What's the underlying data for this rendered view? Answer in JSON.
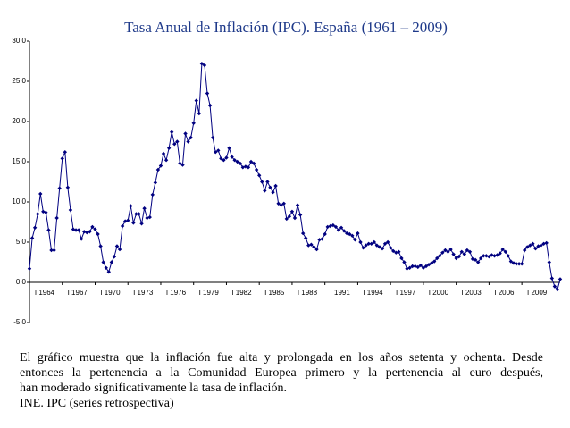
{
  "chart_data": {
    "type": "line",
    "title": "Tasa Anual de Inflación (IPC). España (1961 – 2009)",
    "categories": [
      "I 1964",
      null,
      null,
      null,
      null,
      null,
      null,
      null,
      null,
      null,
      null,
      null,
      "I 1967",
      null,
      null,
      null,
      null,
      null,
      null,
      null,
      null,
      null,
      null,
      null,
      "I 1970",
      null,
      null,
      null,
      null,
      null,
      null,
      null,
      null,
      null,
      null,
      null,
      "I 1973",
      null,
      null,
      null,
      null,
      null,
      null,
      null,
      null,
      null,
      null,
      null,
      "I 1976",
      null,
      null,
      null,
      null,
      null,
      null,
      null,
      null,
      null,
      null,
      null,
      "I 1979",
      null,
      null,
      null,
      null,
      null,
      null,
      null,
      null,
      null,
      null,
      null,
      "I 1982",
      null,
      null,
      null,
      null,
      null,
      null,
      null,
      null,
      null,
      null,
      null,
      "I 1985",
      null,
      null,
      null,
      null,
      null,
      null,
      null,
      null,
      null,
      null,
      null,
      "I 1988",
      null,
      null,
      null,
      null,
      null,
      null,
      null,
      null,
      null,
      null,
      null,
      "I 1991",
      null,
      null,
      null,
      null,
      null,
      null,
      null,
      null,
      null,
      null,
      null,
      "I 1994",
      null,
      null,
      null,
      null,
      null,
      null,
      null,
      null,
      null,
      null,
      null,
      "I 1997",
      null,
      null,
      null,
      null,
      null,
      null,
      null,
      null,
      null,
      null,
      null,
      "I 2000",
      null,
      null,
      null,
      null,
      null,
      null,
      null,
      null,
      null,
      null,
      null,
      "I 2003",
      null,
      null,
      null,
      null,
      null,
      null,
      null,
      null,
      null,
      null,
      null,
      "I 2006",
      null,
      null,
      null,
      null,
      null,
      null,
      null,
      null,
      null,
      null,
      null,
      "I 2009",
      null,
      null,
      null,
      null,
      null,
      null,
      null,
      null,
      null,
      null,
      null,
      null,
      null,
      null
    ],
    "series": [
      {
        "color": "#000080",
        "values": [
          1.7,
          5.5,
          6.8,
          8.5,
          11.0,
          8.8,
          8.7,
          6.5,
          4.0,
          4.0,
          8.0,
          11.7,
          15.4,
          16.2,
          11.8,
          9.0,
          6.6,
          6.5,
          6.5,
          5.4,
          6.3,
          6.2,
          6.3,
          6.9,
          6.6,
          6.0,
          4.5,
          2.5,
          1.8,
          1.3,
          2.5,
          3.2,
          4.5,
          4.1,
          7.0,
          7.6,
          7.7,
          9.5,
          7.4,
          8.5,
          8.5,
          7.3,
          9.2,
          8.0,
          8.1,
          10.9,
          12.4,
          14.0,
          14.5,
          16.0,
          15.2,
          16.7,
          18.7,
          17.2,
          17.5,
          14.8,
          14.6,
          18.5,
          17.5,
          18.0,
          19.8,
          22.6,
          21.0,
          27.2,
          27.0,
          23.5,
          22.0,
          18.0,
          16.2,
          16.4,
          15.4,
          15.2,
          15.5,
          16.7,
          15.6,
          15.2,
          15.0,
          14.8,
          14.3,
          14.4,
          14.3,
          15.0,
          14.8,
          14.0,
          13.3,
          12.5,
          11.4,
          12.5,
          11.8,
          11.2,
          12.0,
          9.8,
          9.6,
          9.8,
          7.9,
          8.2,
          8.8,
          8.0,
          9.6,
          8.4,
          6.1,
          5.5,
          4.6,
          4.7,
          4.4,
          4.1,
          5.3,
          5.4,
          6.0,
          6.9,
          7.0,
          7.1,
          6.9,
          6.5,
          6.8,
          6.4,
          6.1,
          6.0,
          5.8,
          5.3,
          6.1,
          5.0,
          4.3,
          4.6,
          4.8,
          4.8,
          5.0,
          4.6,
          4.4,
          4.2,
          4.8,
          5.0,
          4.3,
          3.9,
          3.7,
          3.8,
          3.0,
          2.5,
          1.7,
          1.8,
          2.0,
          2.0,
          1.9,
          2.1,
          1.8,
          2.0,
          2.2,
          2.4,
          2.6,
          3.0,
          3.3,
          3.7,
          4.0,
          3.8,
          4.1,
          3.5,
          3.0,
          3.2,
          3.8,
          3.5,
          4.0,
          3.8,
          2.9,
          2.8,
          2.5,
          3.0,
          3.3,
          3.3,
          3.2,
          3.4,
          3.3,
          3.4,
          3.6,
          4.1,
          3.8,
          3.3,
          2.6,
          2.4,
          2.3,
          2.3,
          2.3,
          4.0,
          4.4,
          4.6,
          4.8,
          4.2,
          4.5,
          4.6,
          4.8,
          4.9,
          2.5,
          0.5,
          -0.5,
          -0.9,
          0.4
        ]
      }
    ],
    "ylim": [
      -5,
      30
    ],
    "yticks": [
      {
        "value": -5,
        "label": "-5,0"
      },
      {
        "value": 0,
        "label": "0,0"
      },
      {
        "value": 5,
        "label": "5,0"
      },
      {
        "value": 10,
        "label": "10,0"
      },
      {
        "value": 15,
        "label": "15,0"
      },
      {
        "value": 20,
        "label": "20,0"
      },
      {
        "value": 25,
        "label": "25,0"
      },
      {
        "value": 30,
        "label": "30,0"
      }
    ],
    "grid": false
  },
  "caption": {
    "lines": [
      "El gráfico muestra que la inflación fue alta y prolongada en los años setenta y  ochenta.  Desde",
      "entonces la pertenencia a la Comunidad Europea primero  y  la  pertenencia  al  euro  después,",
      "han moderado significativamente la tasa de inflación."
    ],
    "source": "INE. IPC (series retrospectiva)"
  }
}
